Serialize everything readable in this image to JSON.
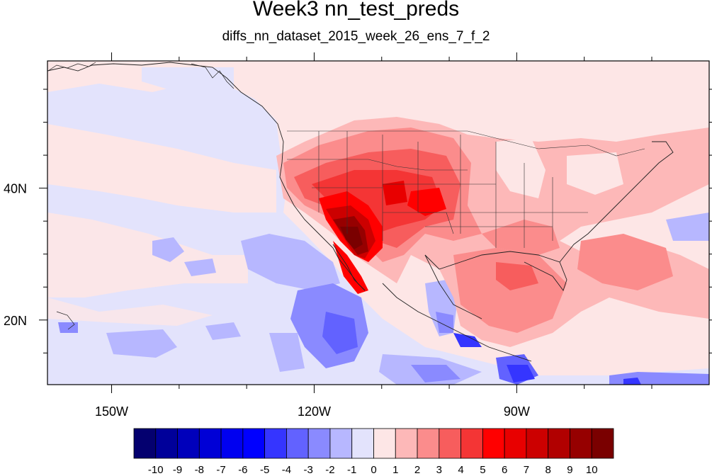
{
  "title": "Week3 nn_test_preds",
  "subtitle": "diffs_nn_dataset_2015_week_26_ens_7_f_2",
  "map": {
    "projection": "cylindrical-equidistant",
    "lon_range": [
      -159.5,
      -61.5
    ],
    "lat_range": [
      10.2,
      59.3
    ],
    "lon_ticks": [
      {
        "value": -150,
        "label": "150W"
      },
      {
        "value": -120,
        "label": "120W"
      },
      {
        "value": -90,
        "label": "90W"
      }
    ],
    "lat_ticks": [
      {
        "value": 40,
        "label": "40N"
      },
      {
        "value": 20,
        "label": "20N"
      }
    ],
    "background_value_color": "#fde6e6"
  },
  "colorbar": {
    "labels": [
      "-10",
      "-9",
      "-8",
      "-7",
      "-6",
      "-5",
      "-4",
      "-3",
      "-2",
      "-1",
      "0",
      "1",
      "2",
      "3",
      "4",
      "5",
      "6",
      "7",
      "8",
      "9",
      "10"
    ],
    "colors": [
      "#04006f",
      "#00009a",
      "#0000bb",
      "#0000d6",
      "#0000f0",
      "#0000ff",
      "#3535ff",
      "#6262ff",
      "#8a8aff",
      "#b7b7ff",
      "#e3e3fc",
      "#fde6e6",
      "#fdb8b8",
      "#fb8c8c",
      "#f75d5d",
      "#f43535",
      "#ff0000",
      "#e80000",
      "#cc0000",
      "#b10000",
      "#960000",
      "#7a0000"
    ]
  }
}
